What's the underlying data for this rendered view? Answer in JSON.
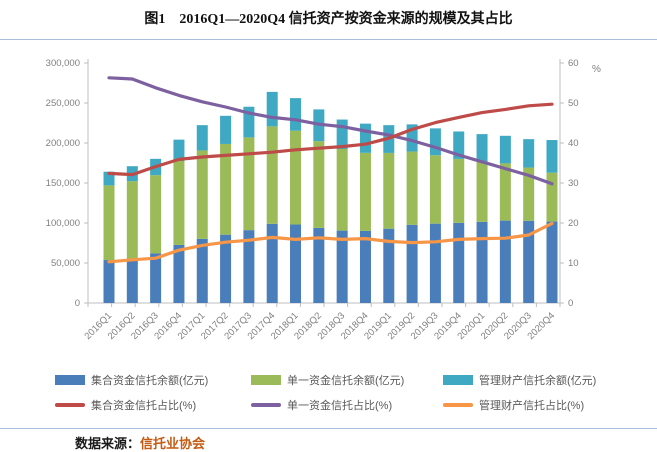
{
  "figure": {
    "title": "图1　2016Q1—2020Q4 信托资产按资金来源的规模及其占比",
    "source_prefix": "数据来源：",
    "source_name": "信托业协会"
  },
  "chart_data": {
    "type": "bar",
    "subtype": "stacked bars (left axis, 亿元) with three overlaid percentage lines (right axis, %)",
    "title": "图1　2016Q1—2020Q4 信托资产按资金来源的规模及其占比",
    "categories": [
      "2016Q1",
      "2016Q2",
      "2016Q3",
      "2016Q4",
      "2017Q1",
      "2017Q2",
      "2017Q3",
      "2017Q4",
      "2018Q1",
      "2018Q2",
      "2018Q3",
      "2018Q4",
      "2019Q1",
      "2019Q2",
      "2019Q3",
      "2019Q4",
      "2020Q1",
      "2020Q2",
      "2020Q3",
      "2020Q4"
    ],
    "bar_series": [
      {
        "name": "集合资金信托余额(亿元)",
        "color": "#4a7ebb",
        "axis": "left",
        "values": [
          53700,
          55500,
          62000,
          72600,
          80200,
          85400,
          91100,
          99000,
          98100,
          93900,
          90500,
          90100,
          92900,
          97800,
          99200,
          100200,
          101500,
          103000,
          102800,
          101800
        ]
      },
      {
        "name": "单一资金信托余额(亿元)",
        "color": "#9bbb59",
        "axis": "left",
        "values": [
          93300,
          96800,
          97800,
          104900,
          110500,
          113400,
          115900,
          121800,
          117300,
          108500,
          102000,
          97600,
          94700,
          91500,
          85500,
          79900,
          75300,
          71500,
          66500,
          61100
        ]
      },
      {
        "name": "管理财产信托余额(亿元)",
        "color": "#3fa9c4",
        "axis": "left",
        "values": [
          17100,
          18700,
          20400,
          26700,
          31600,
          35200,
          38300,
          43100,
          40700,
          39600,
          36800,
          36500,
          34700,
          34000,
          33600,
          34300,
          34300,
          34500,
          35500,
          40800
        ]
      }
    ],
    "line_series": [
      {
        "name": "集合资金信托占比(%)",
        "color": "#be4b48",
        "axis": "right",
        "values": [
          32.4,
          32.1,
          34.1,
          35.9,
          36.5,
          36.9,
          37.3,
          37.7,
          38.3,
          38.7,
          39.1,
          39.7,
          41.2,
          43.4,
          45.1,
          46.4,
          47.6,
          48.4,
          49.3,
          49.7
        ]
      },
      {
        "name": "单一资金信托占比(%)",
        "color": "#7d60a0",
        "axis": "right",
        "values": [
          56.3,
          56.0,
          53.8,
          51.9,
          50.3,
          49.0,
          47.5,
          46.4,
          45.8,
          44.7,
          44.1,
          43.0,
          42.0,
          40.6,
          38.9,
          37.0,
          35.3,
          33.6,
          31.9,
          29.8
        ]
      },
      {
        "name": "管理财产信托占比(%)",
        "color": "#f79646",
        "axis": "right",
        "values": [
          10.3,
          10.8,
          11.2,
          13.2,
          14.4,
          15.2,
          15.7,
          16.4,
          15.9,
          16.3,
          15.9,
          16.1,
          15.4,
          15.1,
          15.3,
          15.9,
          16.1,
          16.2,
          17.0,
          19.9
        ]
      }
    ],
    "left_axis": {
      "min": 0,
      "max": 300000,
      "step": 50000,
      "tick_labels": [
        "0",
        "50,000",
        "100,000",
        "150,000",
        "200,000",
        "250,000",
        "300,000"
      ]
    },
    "right_axis": {
      "min": 0,
      "max": 60,
      "step": 10,
      "unit": "%",
      "tick_labels": [
        "0",
        "10",
        "20",
        "30",
        "40",
        "50",
        "60"
      ]
    },
    "grid": false,
    "legend_position": "bottom",
    "axis_label_color": "#7f7f7f",
    "axis_line_color": "#bfbfbf"
  }
}
